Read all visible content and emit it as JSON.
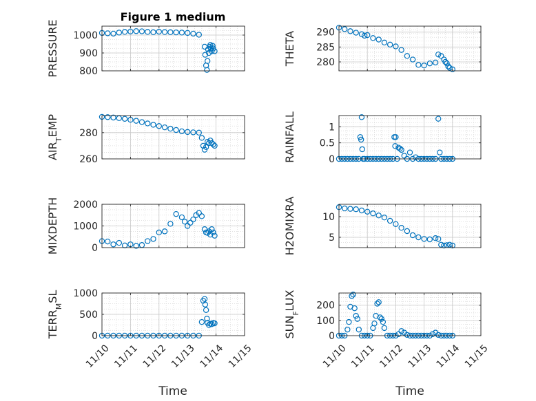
{
  "figure_title": "Figure 1 medium",
  "chart_data": [
    {
      "type": "scatter",
      "ylabel": "PRESSURE",
      "ylim": [
        800,
        1050
      ],
      "yticks": [
        800,
        900,
        1000
      ],
      "ytick_labels": [
        "800",
        "900",
        "1000"
      ],
      "xlim": [
        0,
        5
      ],
      "xticks": [
        0,
        1,
        2,
        3,
        4,
        5
      ],
      "xtick_labels": [
        "11/10",
        "11/11",
        "11/12",
        "11/13",
        "11/14",
        "11/15"
      ],
      "show_xticklabels": false,
      "grid": true,
      "marker_color": "#0072BD",
      "x": [
        0,
        0.2,
        0.4,
        0.6,
        0.8,
        1.0,
        1.2,
        1.4,
        1.6,
        1.8,
        2.0,
        2.2,
        2.4,
        2.6,
        2.8,
        3.0,
        3.2,
        3.4,
        3.6,
        3.62,
        3.65,
        3.68,
        3.7,
        3.72,
        3.75,
        3.78,
        3.8,
        3.82,
        3.85,
        3.88,
        3.9,
        3.95
      ],
      "y": [
        1012,
        1010,
        1008,
        1014,
        1018,
        1020,
        1022,
        1021,
        1018,
        1016,
        1019,
        1017,
        1016,
        1015,
        1014,
        1012,
        1008,
        1002,
        935,
        890,
        830,
        805,
        855,
        920,
        900,
        935,
        945,
        925,
        910,
        940,
        925,
        910
      ]
    },
    {
      "type": "scatter",
      "ylabel": "THETA",
      "ylim": [
        277,
        292
      ],
      "yticks": [
        280,
        285,
        290
      ],
      "ytick_labels": [
        "280",
        "285",
        "290"
      ],
      "xlim": [
        0,
        5
      ],
      "xticks": [
        0,
        1,
        2,
        3,
        4,
        5
      ],
      "xtick_labels": [
        "11/10",
        "11/11",
        "11/12",
        "11/13",
        "11/14",
        "11/15"
      ],
      "show_xticklabels": false,
      "grid": true,
      "marker_color": "#0072BD",
      "x": [
        0,
        0.2,
        0.4,
        0.6,
        0.8,
        0.9,
        1.0,
        1.2,
        1.4,
        1.6,
        1.8,
        2.0,
        2.2,
        2.4,
        2.6,
        2.8,
        3.0,
        3.2,
        3.4,
        3.5,
        3.6,
        3.7,
        3.75,
        3.8,
        3.85,
        3.9,
        4.0
      ],
      "y": [
        291.5,
        291,
        290.3,
        289.8,
        289.3,
        288.8,
        289,
        288,
        287.5,
        286.5,
        285.8,
        285.2,
        284,
        282,
        280.8,
        279,
        278.8,
        279.5,
        279.8,
        282.5,
        282,
        280.8,
        280,
        279.5,
        278.5,
        278,
        277.5
      ]
    },
    {
      "type": "scatter",
      "ylabel": "AIR_TEMP",
      "ylim": [
        260,
        293
      ],
      "yticks": [
        260,
        280
      ],
      "ytick_labels": [
        "260",
        "280"
      ],
      "xlim": [
        0,
        5
      ],
      "xticks": [
        0,
        1,
        2,
        3,
        4,
        5
      ],
      "xtick_labels": [
        "11/10",
        "11/11",
        "11/12",
        "11/13",
        "11/14",
        "11/15"
      ],
      "show_xticklabels": false,
      "grid": true,
      "marker_color": "#0072BD",
      "x": [
        0,
        0.2,
        0.4,
        0.6,
        0.8,
        1.0,
        1.2,
        1.4,
        1.6,
        1.8,
        2.0,
        2.2,
        2.4,
        2.6,
        2.8,
        3.0,
        3.2,
        3.4,
        3.5,
        3.55,
        3.6,
        3.65,
        3.7,
        3.75,
        3.8,
        3.85,
        3.9,
        3.95
      ],
      "y": [
        292,
        291.8,
        291.5,
        291,
        290.5,
        289.8,
        289,
        288,
        287,
        286,
        285,
        284,
        283,
        282,
        281,
        280.5,
        280.2,
        280,
        276,
        270,
        267,
        269,
        273,
        272,
        274,
        272,
        271,
        270
      ]
    },
    {
      "type": "scatter",
      "ylabel": "RAINFALL",
      "ylim": [
        0,
        1.35
      ],
      "yticks": [
        0,
        0.5,
        1
      ],
      "ytick_labels": [
        "0",
        "0.5",
        "1"
      ],
      "xlim": [
        0,
        5
      ],
      "xticks": [
        0,
        1,
        2,
        3,
        4,
        5
      ],
      "xtick_labels": [
        "11/10",
        "11/11",
        "11/12",
        "11/13",
        "11/14",
        "11/15"
      ],
      "show_xticklabels": false,
      "grid": true,
      "marker_color": "#0072BD",
      "x": [
        0,
        0.1,
        0.2,
        0.3,
        0.4,
        0.5,
        0.6,
        0.7,
        0.75,
        0.78,
        0.8,
        0.82,
        0.85,
        0.9,
        1.0,
        1.1,
        1.2,
        1.3,
        1.4,
        1.5,
        1.6,
        1.7,
        1.8,
        1.9,
        1.95,
        1.98,
        2.0,
        2.05,
        2.1,
        2.15,
        2.2,
        2.3,
        2.4,
        2.5,
        2.6,
        2.7,
        2.8,
        2.9,
        3.0,
        3.1,
        3.2,
        3.3,
        3.4,
        3.5,
        3.55,
        3.6,
        3.7,
        3.8,
        3.9,
        4.0
      ],
      "y": [
        0,
        0,
        0,
        0,
        0,
        0,
        0,
        0,
        0.68,
        0.6,
        1.3,
        0.3,
        0,
        0,
        0,
        0,
        0,
        0,
        0,
        0,
        0,
        0,
        0,
        0,
        0.68,
        0.4,
        0.68,
        0,
        0.35,
        0.32,
        0.28,
        0.1,
        0,
        0.2,
        0,
        0.05,
        0,
        0,
        0,
        0,
        0,
        0,
        0,
        1.25,
        0.2,
        0,
        0,
        0,
        0,
        0
      ]
    },
    {
      "type": "scatter",
      "ylabel": "MIXDEPTH",
      "ylim": [
        0,
        2000
      ],
      "yticks": [
        0,
        1000,
        2000
      ],
      "ytick_labels": [
        "0",
        "1000",
        "2000"
      ],
      "xlim": [
        0,
        5
      ],
      "xticks": [
        0,
        1,
        2,
        3,
        4,
        5
      ],
      "xtick_labels": [
        "11/10",
        "11/11",
        "11/12",
        "11/13",
        "11/14",
        "11/15"
      ],
      "show_xticklabels": false,
      "grid": true,
      "marker_color": "#0072BD",
      "x": [
        0,
        0.2,
        0.4,
        0.6,
        0.8,
        1.0,
        1.2,
        1.4,
        1.6,
        1.8,
        2.0,
        2.2,
        2.4,
        2.6,
        2.8,
        2.9,
        3.0,
        3.1,
        3.2,
        3.3,
        3.4,
        3.5,
        3.6,
        3.65,
        3.7,
        3.75,
        3.8,
        3.85,
        3.9,
        3.95
      ],
      "y": [
        300,
        280,
        150,
        220,
        100,
        150,
        80,
        120,
        300,
        400,
        700,
        750,
        1100,
        1550,
        1400,
        1200,
        1000,
        1150,
        1300,
        1500,
        1600,
        1450,
        850,
        700,
        680,
        750,
        600,
        850,
        700,
        550
      ]
    },
    {
      "type": "scatter",
      "ylabel": "H2OMIXRA",
      "ylim": [
        2.5,
        13
      ],
      "yticks": [
        5,
        10
      ],
      "ytick_labels": [
        "5",
        "10"
      ],
      "xlim": [
        0,
        5
      ],
      "xticks": [
        0,
        1,
        2,
        3,
        4,
        5
      ],
      "xtick_labels": [
        "11/10",
        "11/11",
        "11/12",
        "11/13",
        "11/14",
        "11/15"
      ],
      "show_xticklabels": false,
      "grid": true,
      "marker_color": "#0072BD",
      "x": [
        0,
        0.2,
        0.4,
        0.6,
        0.8,
        1.0,
        1.2,
        1.4,
        1.6,
        1.8,
        2.0,
        2.2,
        2.4,
        2.6,
        2.8,
        3.0,
        3.2,
        3.4,
        3.5,
        3.6,
        3.7,
        3.8,
        3.9,
        4.0
      ],
      "y": [
        12.3,
        12,
        11.9,
        11.8,
        11.5,
        11.2,
        10.8,
        10.3,
        9.8,
        9,
        8.2,
        7.3,
        6.5,
        5.5,
        5,
        4.6,
        4.5,
        4.8,
        4.6,
        3.2,
        3,
        3.1,
        3.2,
        3.0
      ]
    },
    {
      "type": "scatter",
      "ylabel": "TERR_MSL",
      "ylim": [
        0,
        1000
      ],
      "yticks": [
        0,
        500,
        1000
      ],
      "ytick_labels": [
        "0",
        "500",
        "1000"
      ],
      "xlim": [
        0,
        5
      ],
      "xticks": [
        0,
        1,
        2,
        3,
        4,
        5
      ],
      "xtick_labels": [
        "11/10",
        "11/11",
        "11/12",
        "11/13",
        "11/14",
        "11/15"
      ],
      "show_xticklabels": true,
      "grid": true,
      "marker_color": "#0072BD",
      "x": [
        0,
        0.2,
        0.4,
        0.6,
        0.8,
        1.0,
        1.2,
        1.4,
        1.6,
        1.8,
        2.0,
        2.2,
        2.4,
        2.6,
        2.8,
        3.0,
        3.2,
        3.4,
        3.5,
        3.55,
        3.6,
        3.62,
        3.65,
        3.68,
        3.7,
        3.75,
        3.8,
        3.85,
        3.9,
        3.95
      ],
      "y": [
        0,
        0,
        0,
        0,
        0,
        0,
        0,
        0,
        0,
        0,
        0,
        0,
        0,
        0,
        0,
        0,
        0,
        0,
        320,
        820,
        860,
        730,
        600,
        400,
        300,
        250,
        280,
        270,
        300,
        290
      ]
    },
    {
      "type": "scatter",
      "ylabel": "SUN_FLUX",
      "ylim": [
        0,
        280
      ],
      "yticks": [
        0,
        100,
        200
      ],
      "ytick_labels": [
        "0",
        "100",
        "200"
      ],
      "xlim": [
        0,
        5
      ],
      "xticks": [
        0,
        1,
        2,
        3,
        4,
        5
      ],
      "xtick_labels": [
        "11/10",
        "11/11",
        "11/12",
        "11/13",
        "11/14",
        "11/15"
      ],
      "show_xticklabels": true,
      "grid": true,
      "marker_color": "#0072BD",
      "x": [
        0,
        0.1,
        0.2,
        0.3,
        0.35,
        0.4,
        0.45,
        0.5,
        0.55,
        0.6,
        0.65,
        0.7,
        0.8,
        0.9,
        1.0,
        1.1,
        1.2,
        1.25,
        1.3,
        1.35,
        1.4,
        1.45,
        1.5,
        1.55,
        1.6,
        1.7,
        1.8,
        1.9,
        2.0,
        2.1,
        2.2,
        2.3,
        2.4,
        2.5,
        2.6,
        2.7,
        2.8,
        2.9,
        3.0,
        3.1,
        3.2,
        3.3,
        3.4,
        3.5,
        3.6,
        3.7,
        3.8,
        3.9,
        4.0
      ],
      "y": [
        0,
        0,
        0,
        40,
        90,
        190,
        260,
        270,
        180,
        130,
        110,
        40,
        0,
        0,
        0,
        0,
        50,
        80,
        130,
        210,
        220,
        120,
        110,
        90,
        50,
        0,
        0,
        0,
        0,
        10,
        30,
        20,
        5,
        0,
        0,
        0,
        0,
        0,
        0,
        0,
        0,
        10,
        20,
        5,
        0,
        0,
        0,
        0,
        0
      ]
    }
  ],
  "x_axis_label": "Time"
}
